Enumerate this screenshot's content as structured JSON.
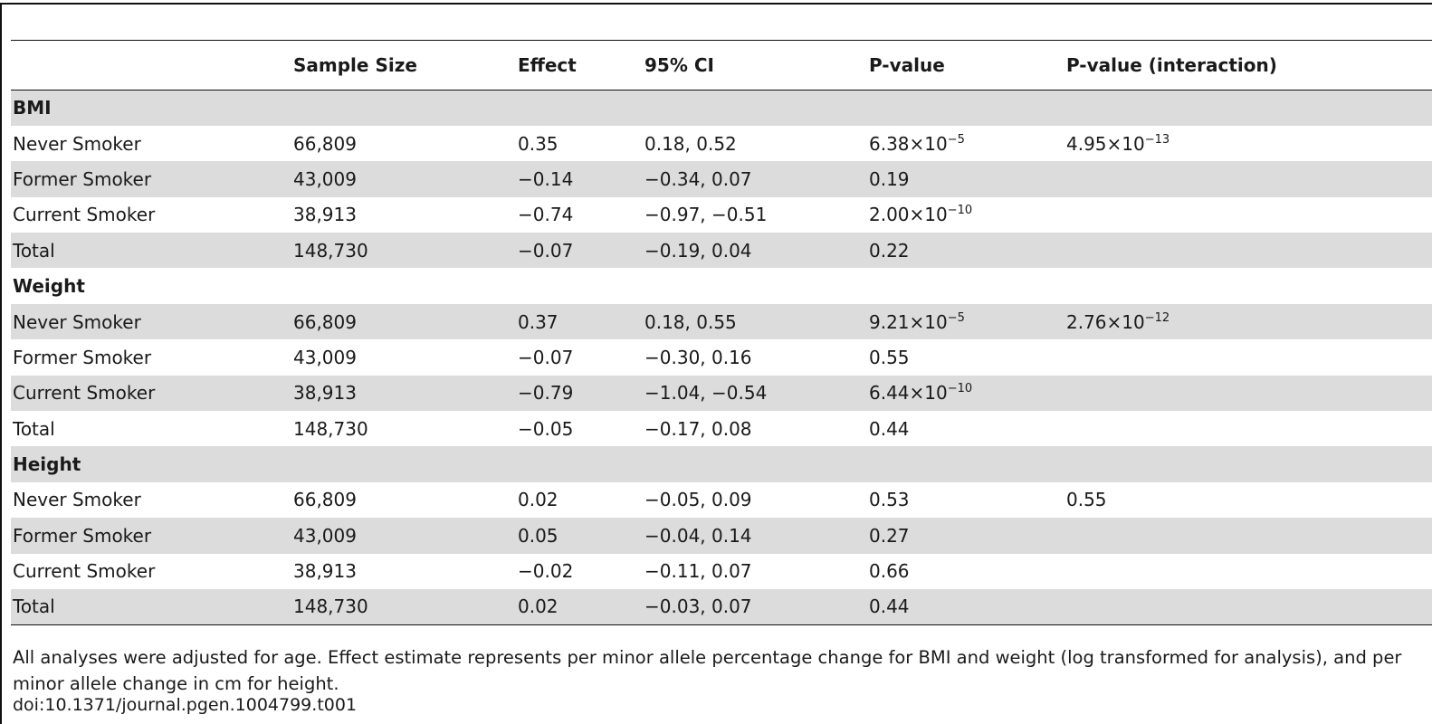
{
  "table": {
    "columns": [
      "",
      "Sample Size",
      "Effect",
      "95% CI",
      "P-value",
      "P-value (interaction)"
    ],
    "rows": [
      {
        "type": "group",
        "label": "BMI",
        "shaded": true
      },
      {
        "type": "data",
        "label": "Never Smoker",
        "sample_size": "66,809",
        "effect": "0.35",
        "ci": "0.18, 0.52",
        "p_base": "6.38×10",
        "p_exp": "−5",
        "pi_base": "4.95×10",
        "pi_exp": "−13",
        "shaded": false
      },
      {
        "type": "data",
        "label": "Former Smoker",
        "sample_size": "43,009",
        "effect": "−0.14",
        "ci": "−0.34, 0.07",
        "p_base": "0.19",
        "p_exp": "",
        "pi_base": "",
        "pi_exp": "",
        "shaded": true
      },
      {
        "type": "data",
        "label": "Current Smoker",
        "sample_size": "38,913",
        "effect": "−0.74",
        "ci": "−0.97, −0.51",
        "p_base": "2.00×10",
        "p_exp": "−10",
        "pi_base": "",
        "pi_exp": "",
        "shaded": false
      },
      {
        "type": "data",
        "label": "Total",
        "sample_size": "148,730",
        "effect": "−0.07",
        "ci": "−0.19, 0.04",
        "p_base": "0.22",
        "p_exp": "",
        "pi_base": "",
        "pi_exp": "",
        "shaded": true
      },
      {
        "type": "group",
        "label": "Weight",
        "shaded": false
      },
      {
        "type": "data",
        "label": "Never Smoker",
        "sample_size": "66,809",
        "effect": "0.37",
        "ci": "0.18, 0.55",
        "p_base": "9.21×10",
        "p_exp": "−5",
        "pi_base": "2.76×10",
        "pi_exp": "−12",
        "shaded": true
      },
      {
        "type": "data",
        "label": "Former Smoker",
        "sample_size": "43,009",
        "effect": "−0.07",
        "ci": "−0.30, 0.16",
        "p_base": "0.55",
        "p_exp": "",
        "pi_base": "",
        "pi_exp": "",
        "shaded": false
      },
      {
        "type": "data",
        "label": "Current Smoker",
        "sample_size": "38,913",
        "effect": "−0.79",
        "ci": "−1.04, −0.54",
        "p_base": "6.44×10",
        "p_exp": "−10",
        "pi_base": "",
        "pi_exp": "",
        "shaded": true
      },
      {
        "type": "data",
        "label": "Total",
        "sample_size": "148,730",
        "effect": "−0.05",
        "ci": "−0.17, 0.08",
        "p_base": "0.44",
        "p_exp": "",
        "pi_base": "",
        "pi_exp": "",
        "shaded": false
      },
      {
        "type": "group",
        "label": "Height",
        "shaded": true
      },
      {
        "type": "data",
        "label": "Never Smoker",
        "sample_size": "66,809",
        "effect": "0.02",
        "ci": "−0.05, 0.09",
        "p_base": "0.53",
        "p_exp": "",
        "pi_base": "0.55",
        "pi_exp": "",
        "shaded": false
      },
      {
        "type": "data",
        "label": "Former Smoker",
        "sample_size": "43,009",
        "effect": "0.05",
        "ci": "−0.04, 0.14",
        "p_base": "0.27",
        "p_exp": "",
        "pi_base": "",
        "pi_exp": "",
        "shaded": true
      },
      {
        "type": "data",
        "label": "Current Smoker",
        "sample_size": "38,913",
        "effect": "−0.02",
        "ci": "−0.11, 0.07",
        "p_base": "0.66",
        "p_exp": "",
        "pi_base": "",
        "pi_exp": "",
        "shaded": false
      },
      {
        "type": "data",
        "label": "Total",
        "sample_size": "148,730",
        "effect": "0.02",
        "ci": "−0.03, 0.07",
        "p_base": "0.44",
        "p_exp": "",
        "pi_base": "",
        "pi_exp": "",
        "shaded": true
      }
    ]
  },
  "footnote": "All analyses were adjusted for age. Effect estimate represents per minor allele percentage change for BMI and weight (log transformed for analysis), and per minor allele change in cm for height.",
  "doi": "doi:10.1371/journal.pgen.1004799.t001",
  "colors": {
    "shade": "#dcdcdc",
    "rule": "#111111"
  }
}
